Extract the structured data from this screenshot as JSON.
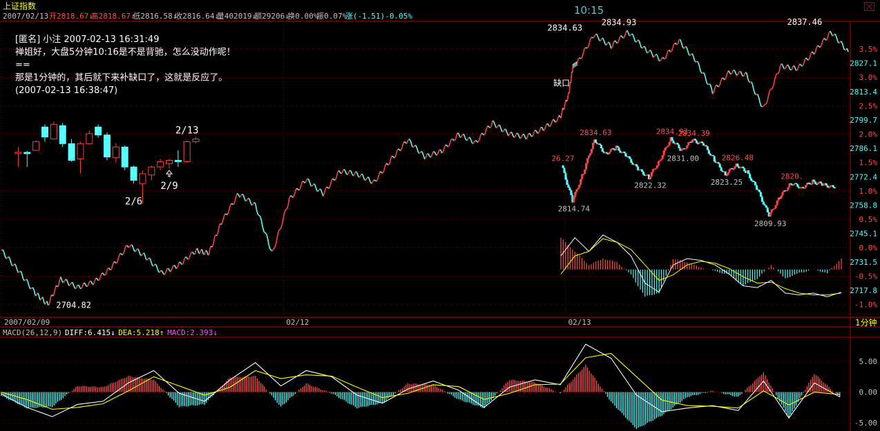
{
  "header": {
    "title": "上证指数",
    "stats": [
      {
        "text": "2007/02/13",
        "color": "#c0c0c0"
      },
      {
        "text": "开2818.67↓",
        "color": "#ff5050"
      },
      {
        "text": "高2818.67↓",
        "color": "#ff5050"
      },
      {
        "text": "低2816.58↓",
        "color": "#c0c0c0"
      },
      {
        "text": "收2816.64↓",
        "color": "#c0c0c0"
      },
      {
        "text": "量402019↓",
        "color": "#c0c0c0"
      },
      {
        "text": "额29206↓",
        "color": "#c0c0c0"
      },
      {
        "text": "换0.00%",
        "color": "#c0c0c0"
      },
      {
        "text": "振0.07%",
        "color": "#c0c0c0"
      },
      {
        "text": "涨(-1.51)-0.05%",
        "color": "#55ffff"
      }
    ],
    "time": "10:15"
  },
  "annotation": {
    "lines": [
      "[匿名] 小注 2007-02-13 16:31:49",
      "禅姐好，大盘5分钟10:16是不是背驰，怎么没动作呢！",
      "==",
      "那是1分钟的，其后就下来补缺口了，这就是反应了。",
      "(2007-02-13 16:38:47)"
    ]
  },
  "chart_data": [
    {
      "type": "line",
      "name": "main-5min",
      "ylabels": [
        {
          "y": 3.5,
          "label": "3.5%"
        },
        {
          "y": 3.0,
          "label": "3.0%"
        },
        {
          "y": 2.5,
          "label": "2.5%"
        },
        {
          "y": 2.0,
          "label": "2.0%"
        },
        {
          "y": 1.5,
          "label": "1.5%"
        },
        {
          "y": 1.0,
          "label": "1.0%"
        },
        {
          "y": 0.5,
          "label": "0.5%"
        },
        {
          "y": 0.0,
          "label": "0.0%"
        },
        {
          "y": -0.5,
          "label": "-0.5%"
        },
        {
          "y": -1.0,
          "label": "-1.0%"
        }
      ],
      "ylabels_price": [
        {
          "y": 3.25,
          "label": "2827.1"
        },
        {
          "y": 2.75,
          "label": "2813.4"
        },
        {
          "y": 2.25,
          "label": "2799.7"
        },
        {
          "y": 1.75,
          "label": "2786.1"
        },
        {
          "y": 1.25,
          "label": "2772.4"
        },
        {
          "y": 0.75,
          "label": "2758.8"
        },
        {
          "y": 0.25,
          "label": "2745.1"
        },
        {
          "y": -0.25,
          "label": "2731.5"
        },
        {
          "y": -0.75,
          "label": "2717.8"
        }
      ],
      "ylim": [
        -1.2,
        3.95
      ],
      "xlabels": [
        "2007/02/09",
        "02/12",
        "02/13"
      ],
      "xlabel_pos": [
        0.0,
        0.333,
        0.666
      ],
      "period_label": "1分钟",
      "x": [
        0,
        0.02,
        0.04,
        0.055,
        0.07,
        0.09,
        0.11,
        0.13,
        0.15,
        0.17,
        0.19,
        0.21,
        0.23,
        0.245,
        0.26,
        0.28,
        0.3,
        0.32,
        0.34,
        0.36,
        0.38,
        0.4,
        0.42,
        0.44,
        0.46,
        0.48,
        0.5,
        0.52,
        0.54,
        0.56,
        0.58,
        0.6,
        0.62,
        0.64,
        0.66,
        0.67,
        0.675,
        0.68,
        0.7,
        0.72,
        0.74,
        0.76,
        0.78,
        0.8,
        0.82,
        0.84,
        0.86,
        0.88,
        0.9,
        0.92,
        0.94,
        0.96,
        0.98,
        1.0
      ],
      "values": [
        -0.05,
        -0.4,
        -0.8,
        -1.0,
        -0.55,
        -0.7,
        -0.6,
        -0.35,
        0.05,
        -0.15,
        -0.45,
        -0.3,
        -0.05,
        -0.1,
        0.45,
        0.95,
        0.75,
        -0.1,
        0.85,
        1.2,
        0.95,
        1.35,
        1.3,
        1.15,
        1.55,
        1.9,
        1.6,
        1.7,
        2.0,
        1.85,
        2.2,
        2.0,
        1.95,
        2.1,
        2.3,
        2.7,
        3.2,
        3.25,
        3.75,
        3.55,
        3.8,
        3.5,
        3.3,
        3.65,
        3.3,
        2.75,
        3.1,
        3.05,
        2.45,
        3.2,
        3.15,
        3.45,
        3.8,
        3.45
      ],
      "annotations": [
        {
          "label": "2704.82",
          "x": 0.055,
          "y": -1.0,
          "dx": 12,
          "dy": 5
        },
        {
          "label": "2834.63",
          "x": 0.675,
          "y": 3.75,
          "dx": -37,
          "dy": -6
        },
        {
          "label": "2834.93",
          "x": 0.72,
          "y": 3.82,
          "dx": -14,
          "dy": -8
        },
        {
          "label": "2837.46",
          "x": 0.985,
          "y": 3.85,
          "dx": -70,
          "dy": -6
        },
        {
          "label": "缺口",
          "x": 0.66,
          "y": 2.8,
          "dx": -10,
          "dy": -4
        }
      ]
    },
    {
      "type": "candlestick",
      "name": "daily-inset",
      "candles": [
        [
          2720,
          2730,
          2700,
          2722
        ],
        [
          2722,
          2724,
          2700,
          2720
        ],
        [
          2725,
          2740,
          2724,
          2738
        ],
        [
          2760,
          2764,
          2738,
          2745
        ],
        [
          2742,
          2768,
          2741,
          2764
        ],
        [
          2762,
          2766,
          2730,
          2735
        ],
        [
          2735,
          2742,
          2708,
          2710
        ],
        [
          2712,
          2738,
          2690,
          2735
        ],
        [
          2735,
          2755,
          2734,
          2750
        ],
        [
          2760,
          2764,
          2744,
          2748
        ],
        [
          2748,
          2752,
          2710,
          2715
        ],
        [
          2714,
          2736,
          2706,
          2730
        ],
        [
          2730,
          2732,
          2695,
          2700
        ],
        [
          2700,
          2702,
          2675,
          2680
        ],
        [
          2675,
          2695,
          2645,
          2690
        ],
        [
          2688,
          2702,
          2680,
          2700
        ],
        [
          2700,
          2712,
          2695,
          2708
        ],
        [
          2705,
          2712,
          2698,
          2710
        ],
        [
          2710,
          2725,
          2700,
          2708
        ],
        [
          2708,
          2740,
          2706,
          2738
        ],
        [
          2738,
          2745,
          2735,
          2742
        ]
      ],
      "ylim": [
        2635,
        2785
      ],
      "labels": [
        {
          "label": "2/6",
          "idx": 13,
          "pos": "below"
        },
        {
          "label": "2/9",
          "idx": 17,
          "pos": "below"
        },
        {
          "label": "2/13",
          "idx": 19,
          "pos": "above"
        }
      ]
    },
    {
      "type": "line",
      "name": "intraday-inset",
      "x": [
        0,
        0.04,
        0.08,
        0.12,
        0.16,
        0.2,
        0.24,
        0.28,
        0.32,
        0.36,
        0.4,
        0.44,
        0.48,
        0.52,
        0.56,
        0.6,
        0.64,
        0.68,
        0.72,
        0.76,
        0.8,
        0.84,
        0.88,
        0.92,
        0.96,
        1.0
      ],
      "values": [
        2826.27,
        2814.74,
        2824,
        2834.63,
        2830,
        2832,
        2829,
        2825,
        2822.32,
        2828,
        2834.93,
        2831.0,
        2834.39,
        2833,
        2828,
        2823.25,
        2826.48,
        2824,
        2818,
        2809.93,
        2816,
        2820.5,
        2819,
        2821,
        2820,
        2819
      ],
      "ylim": [
        2805,
        2840
      ],
      "annotations": [
        {
          "label": "26.27",
          "i": 0,
          "pos": "above",
          "color": "#ff5050"
        },
        {
          "label": "2814.74",
          "i": 1,
          "pos": "below",
          "color": "#c0c0c0"
        },
        {
          "label": "2834.63",
          "i": 3,
          "pos": "above",
          "color": "#ff5050"
        },
        {
          "label": "2822.32",
          "i": 8,
          "pos": "below",
          "color": "#c0c0c0"
        },
        {
          "label": "2834.93",
          "i": 10,
          "pos": "above",
          "color": "#ff5050"
        },
        {
          "label": "2831.00",
          "i": 11,
          "pos": "below",
          "color": "#c0c0c0"
        },
        {
          "label": "2834.39",
          "i": 12,
          "pos": "above",
          "color": "#ff5050"
        },
        {
          "label": "2823.25",
          "i": 15,
          "pos": "below",
          "color": "#c0c0c0"
        },
        {
          "label": "2826.48",
          "i": 16,
          "pos": "above",
          "color": "#ff5050"
        },
        {
          "label": "2809.93",
          "i": 19,
          "pos": "below",
          "color": "#c0c0c0"
        },
        {
          "label": "2820.",
          "i": 21,
          "pos": "above",
          "color": "#ff5050"
        }
      ]
    },
    {
      "type": "bar",
      "name": "macd-main",
      "legend": [
        {
          "text": "MACD(26,12,9)",
          "color": "#c0c0c0"
        },
        {
          "text": "DIFF:6.415↓",
          "color": "#ffffff"
        },
        {
          "text": "DEA:5.218↑",
          "color": "#ffff00"
        },
        {
          "text": "MACD:2.393↓",
          "color": "#ff55ff"
        }
      ],
      "ylabels": [
        {
          "y": 5,
          "label": "5.00"
        },
        {
          "y": 0,
          "label": "0.00"
        },
        {
          "y": -5,
          "label": "-5.00"
        }
      ],
      "ylim": [
        -6.0,
        8.6
      ],
      "x": [
        0,
        0.03,
        0.06,
        0.09,
        0.12,
        0.15,
        0.18,
        0.21,
        0.24,
        0.27,
        0.3,
        0.33,
        0.36,
        0.39,
        0.42,
        0.45,
        0.48,
        0.51,
        0.54,
        0.57,
        0.6,
        0.63,
        0.66,
        0.69,
        0.72,
        0.75,
        0.78,
        0.81,
        0.84,
        0.87,
        0.9,
        0.93,
        0.96,
        0.99
      ],
      "diff": [
        -0.3,
        -2.5,
        -4.0,
        -2.0,
        -1.5,
        1.5,
        3.5,
        -0.2,
        -1.5,
        2.0,
        4.8,
        1.0,
        3.5,
        2.5,
        -0.5,
        -1.8,
        0.5,
        1.8,
        0.3,
        -2.5,
        0.8,
        2.0,
        1.2,
        7.8,
        5.5,
        -0.5,
        -3.2,
        -2.6,
        -2.2,
        -3.0,
        1.8,
        -4.2,
        1.5,
        -0.8
      ],
      "dea": [
        0.0,
        -1.2,
        -2.8,
        -2.5,
        -1.9,
        0.2,
        2.5,
        1.0,
        -0.5,
        0.8,
        3.5,
        2.2,
        2.8,
        2.6,
        0.8,
        -0.9,
        -0.2,
        1.2,
        0.9,
        -1.2,
        -0.2,
        1.2,
        1.3,
        5.6,
        6.3,
        2.5,
        -1.3,
        -2.2,
        -2.3,
        -2.6,
        0.2,
        -2.1,
        0.0,
        -0.4
      ],
      "hist": [
        -0.6,
        -2.6,
        -2.4,
        1.0,
        0.8,
        2.6,
        2.0,
        -2.4,
        -2.0,
        2.4,
        2.6,
        -2.4,
        1.4,
        -0.2,
        -2.6,
        -1.8,
        1.4,
        1.2,
        -1.2,
        -2.6,
        2.0,
        1.6,
        -0.2,
        4.4,
        -1.6,
        -6.0,
        -3.8,
        -0.8,
        0.2,
        -0.8,
        3.2,
        -4.2,
        3.0,
        -0.8
      ]
    },
    {
      "type": "bar",
      "name": "macd-inset",
      "x": [
        0,
        0.05,
        0.1,
        0.15,
        0.2,
        0.25,
        0.3,
        0.35,
        0.4,
        0.45,
        0.5,
        0.55,
        0.6,
        0.65,
        0.7,
        0.75,
        0.8,
        0.85,
        0.9,
        0.95,
        1.0
      ],
      "diff": [
        1.5,
        3.5,
        2.0,
        3.8,
        3.0,
        1.5,
        -1.5,
        -2.5,
        0.5,
        1.2,
        1.0,
        0.5,
        -0.5,
        -1.8,
        -2.0,
        -1.2,
        -2.6,
        -2.8,
        -2.6,
        -3.0,
        -2.5
      ],
      "dea": [
        -0.5,
        1.5,
        2.0,
        3.4,
        3.0,
        2.2,
        0.5,
        -1.2,
        -0.6,
        0.5,
        0.9,
        0.7,
        0.1,
        -0.8,
        -1.5,
        -1.4,
        -2.1,
        -2.6,
        -2.8,
        -2.8,
        -2.6
      ],
      "hist": [
        3.5,
        2.0,
        0.5,
        1.2,
        0.8,
        -0.6,
        -3.0,
        -2.6,
        1.2,
        0.8,
        0.2,
        -0.2,
        -0.6,
        -1.8,
        -1.0,
        0.5,
        -1.0,
        -0.4,
        0.0,
        -0.4,
        1.2
      ],
      "ylim": [
        -4.5,
        5.0
      ]
    }
  ]
}
